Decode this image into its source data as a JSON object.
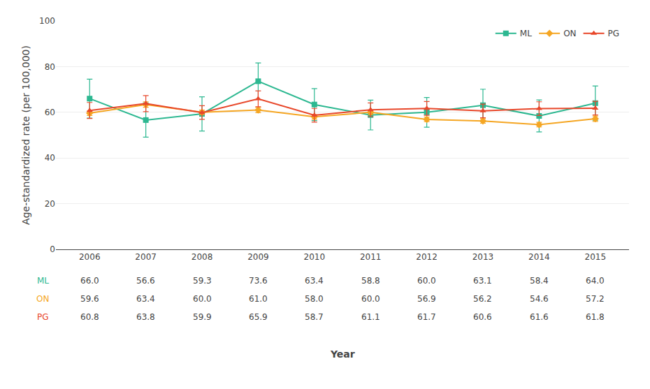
{
  "chart_data": {
    "type": "line",
    "x": [
      2006,
      2007,
      2008,
      2009,
      2010,
      2011,
      2012,
      2013,
      2014,
      2015
    ],
    "xlim": [
      2005.4,
      2015.6
    ],
    "xticks": [
      2006,
      2007,
      2008,
      2009,
      2010,
      2011,
      2012,
      2013,
      2014,
      2015
    ],
    "xlabel": "Year",
    "ylabel": "Age-standardized rate (per 100,000)",
    "ylim": [
      0,
      100
    ],
    "yticks": [
      0,
      20,
      40,
      60,
      80,
      100
    ],
    "grid": true,
    "legend": "upper right",
    "data_labels": true,
    "series": [
      {
        "name": "ML",
        "color": "#2db891",
        "marker": "square",
        "values": [
          66.0,
          56.6,
          59.3,
          73.6,
          63.4,
          58.8,
          60.0,
          63.1,
          58.4,
          64.0
        ],
        "value_labels": [
          "66.0",
          "56.6",
          "59.3",
          "73.6",
          "63.4",
          "58.8",
          "60.0",
          "63.1",
          "58.4",
          "64.0"
        ],
        "error": [
          8.5,
          7.5,
          7.5,
          8.0,
          7.0,
          6.5,
          6.5,
          7.0,
          7.0,
          7.5
        ]
      },
      {
        "name": "ON",
        "color": "#f5a623",
        "marker": "diamond",
        "values": [
          59.6,
          63.4,
          60.0,
          61.0,
          58.0,
          60.0,
          56.9,
          56.2,
          54.6,
          57.2
        ],
        "value_labels": [
          "59.6",
          "63.4",
          "60.0",
          "61.0",
          "58.0",
          "60.0",
          "56.9",
          "56.2",
          "54.6",
          "57.2"
        ],
        "error": [
          1.0,
          1.2,
          1.0,
          1.2,
          1.0,
          1.0,
          1.0,
          1.0,
          1.0,
          1.2
        ]
      },
      {
        "name": "PG",
        "color": "#e8472a",
        "marker": "triangle-up",
        "values": [
          60.8,
          63.8,
          59.9,
          65.9,
          58.7,
          61.1,
          61.7,
          60.6,
          61.6,
          61.8
        ],
        "value_labels": [
          "60.8",
          "63.8",
          "59.9",
          "65.9",
          "58.7",
          "61.1",
          "61.7",
          "60.6",
          "61.6",
          "61.8"
        ],
        "error": [
          3.5,
          3.5,
          3.0,
          3.5,
          3.0,
          3.0,
          3.0,
          3.0,
          3.0,
          3.0
        ]
      }
    ]
  }
}
